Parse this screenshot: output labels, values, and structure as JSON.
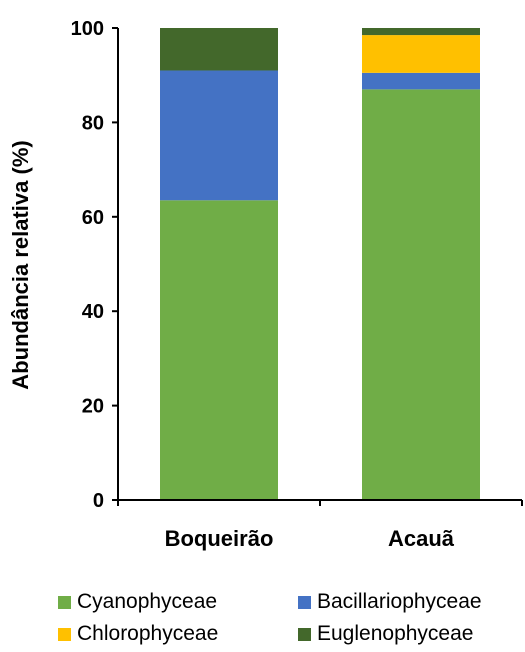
{
  "chart_data": {
    "type": "bar",
    "stacked": true,
    "categories": [
      "Boqueirão",
      "Acauã"
    ],
    "ylabel": "Abundância relativa (%)",
    "xlabel": "",
    "ylim": [
      0,
      100
    ],
    "yticks": [
      0,
      20,
      40,
      60,
      80,
      100
    ],
    "grid": false,
    "legend_position": "bottom",
    "series": [
      {
        "name": "Cyanophyceae",
        "color": "#70AD47",
        "values": [
          63.5,
          87
        ]
      },
      {
        "name": "Bacillariophyceae",
        "color": "#4472C4",
        "values": [
          27.5,
          3.5
        ]
      },
      {
        "name": "Chlorophyceae",
        "color": "#FFC000",
        "values": [
          0,
          8
        ]
      },
      {
        "name": "Euglenophyceae",
        "color": "#43682B",
        "values": [
          9,
          1.5
        ]
      }
    ]
  }
}
